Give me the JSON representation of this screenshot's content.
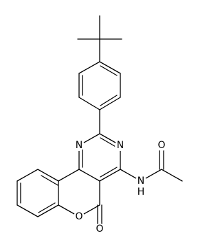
{
  "atoms": [
    {
      "label": "N"
    },
    {
      "label": "N"
    },
    {
      "label": "N",
      "hydrogen": "H"
    },
    {
      "label": "O"
    },
    {
      "label": "O"
    },
    {
      "label": "O"
    }
  ]
}
